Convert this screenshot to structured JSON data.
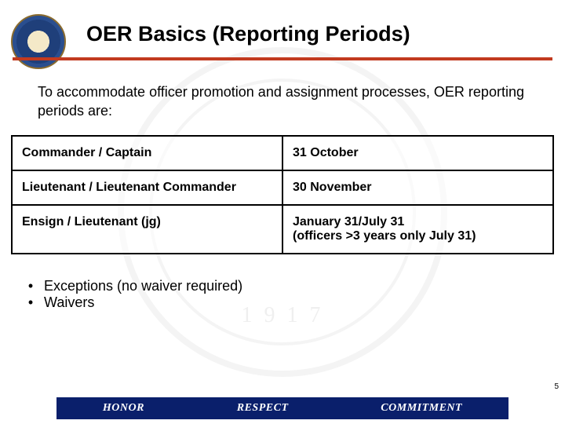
{
  "colors": {
    "rule": "#c23a1f",
    "footer_bg": "#0a1f6b",
    "table_border": "#000000",
    "text": "#000000"
  },
  "watermark_year": "1 9 1 7",
  "title": "OER Basics (Reporting Periods)",
  "intro": "To accommodate officer promotion and assignment processes, OER reporting periods are:",
  "table": {
    "rows": [
      {
        "rank": "Commander / Captain",
        "period": "31 October"
      },
      {
        "rank": "Lieutenant / Lieutenant Commander",
        "period": "30 November"
      },
      {
        "rank": "Ensign / Lieutenant (jg)",
        "period": "January 31/July 31\n(officers >3 years only July 31)"
      }
    ]
  },
  "bullets": [
    "Exceptions (no waiver required)",
    "Waivers"
  ],
  "page_number": "5",
  "footer": {
    "left": "HONOR",
    "center": "RESPECT",
    "right": "COMMITMENT"
  }
}
